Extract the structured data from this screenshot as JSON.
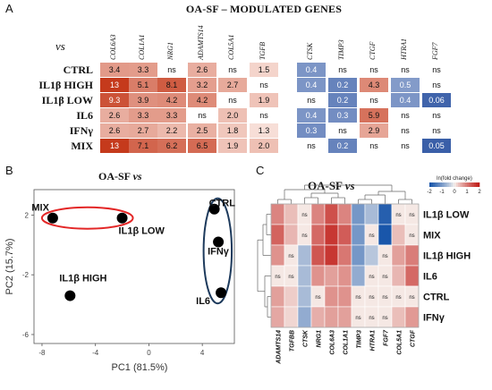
{
  "panelA": {
    "letter": "A",
    "title": "OA-SF – MODULATED GENES",
    "vs_label": "vs",
    "genes": [
      "COL6A3",
      "COL1A1",
      "NRG1",
      "ADAMTS14",
      "COL5A1",
      "TGFB",
      "CTSK",
      "TIMP3",
      "CTGF",
      "HTRA1",
      "FGF7"
    ],
    "rows": [
      {
        "label": "CTRL",
        "values": [
          "3.4",
          "3.3",
          "ns",
          "2.6",
          "ns",
          "1.5",
          "0.4",
          "ns",
          "ns",
          "ns",
          "ns"
        ]
      },
      {
        "label": "IL1β HIGH",
        "values": [
          "13",
          "5.1",
          "8.1",
          "3.2",
          "2.7",
          "ns",
          "0.4",
          "0.2",
          "4.3",
          "0.5",
          "ns"
        ]
      },
      {
        "label": "IL1β LOW",
        "values": [
          "9.3",
          "3.9",
          "4.2",
          "4.2",
          "ns",
          "1.9",
          "ns",
          "0.2",
          "ns",
          "0.4",
          "0.06"
        ]
      },
      {
        "label": "IL6",
        "values": [
          "2.6",
          "3.3",
          "3.3",
          "ns",
          "2.0",
          "ns",
          "0.4",
          "0.3",
          "5.9",
          "ns",
          "ns"
        ]
      },
      {
        "label": "IFNγ",
        "values": [
          "2.6",
          "2.7",
          "2.2",
          "2.5",
          "1.8",
          "1.3",
          "0.3",
          "ns",
          "2.9",
          "ns",
          "ns"
        ]
      },
      {
        "label": "MIX",
        "values": [
          "13",
          "7.1",
          "6.2",
          "6.5",
          "1.9",
          "2.0",
          "ns",
          "0.2",
          "ns",
          "ns",
          "0.05"
        ]
      }
    ],
    "colors": {
      "up_strong": "#c53a1c",
      "down_strong": "#3a5fa8",
      "neutral": "#fdf1ec"
    }
  },
  "panelB": {
    "letter": "B",
    "title": "OA-SF",
    "vs_label": "vs",
    "chart_data": {
      "type": "scatter",
      "xlabel": "PC1 (81.5%)",
      "ylabel": "PC2 (15.7%)",
      "xlim": [
        -8.6,
        6.4
      ],
      "ylim": [
        -6.6,
        3.7
      ],
      "xticks": [
        "-8",
        "-4",
        "0",
        "4"
      ],
      "xtick_values": [
        -8,
        -4,
        0,
        4
      ],
      "yticks": [
        "2",
        "-2",
        "-6"
      ],
      "ytick_values": [
        2,
        -2,
        -6
      ],
      "points": [
        {
          "label": "MIX",
          "x": -7.2,
          "y": 1.8
        },
        {
          "label": "IL1β LOW",
          "x": -2.0,
          "y": 1.8
        },
        {
          "label": "IL1β HIGH",
          "x": -5.9,
          "y": -3.4
        },
        {
          "label": "CTRL",
          "x": 4.9,
          "y": 2.4
        },
        {
          "label": "IFNγ",
          "x": 5.2,
          "y": 0.2
        },
        {
          "label": "IL6",
          "x": 5.4,
          "y": -3.2
        }
      ],
      "clusters": [
        {
          "color": "#e32626",
          "members": [
            "MIX",
            "IL1β LOW"
          ]
        },
        {
          "color": "#1d3a5c",
          "members": [
            "CTRL",
            "IFNγ",
            "IL6"
          ]
        }
      ]
    }
  },
  "panelC": {
    "letter": "C",
    "title": "OA-SF",
    "vs_label": "vs",
    "legend_title": "ln(fold change)",
    "legend_ticks": [
      "-2",
      "-1",
      "0",
      "1",
      "2"
    ],
    "chart_data": {
      "type": "heatmap",
      "rows": [
        "IL1β LOW",
        "MIX",
        "IL1β HIGH",
        "IL6",
        "CTRL",
        "IFNγ"
      ],
      "columns": [
        "ADAMTS14",
        "TGFBB",
        "CTSK",
        "NRG1",
        "COL6A3",
        "COL1A1",
        "TIMP3",
        "HTRA1",
        "FGF7",
        "COL5A1",
        "CTGF"
      ],
      "values": [
        [
          1.4,
          0.6,
          0.1,
          1.4,
          2.2,
          1.4,
          -1.6,
          -0.9,
          -2.8,
          0.1,
          0.1
        ],
        [
          1.9,
          0.7,
          0.1,
          1.8,
          2.6,
          2.0,
          -1.6,
          0.1,
          -3.0,
          0.6,
          0.1
        ],
        [
          1.2,
          0.1,
          -0.9,
          2.1,
          2.6,
          1.6,
          -1.6,
          -0.7,
          0.1,
          1.0,
          1.5
        ],
        [
          0.1,
          0.1,
          -0.9,
          1.2,
          1.0,
          1.2,
          -1.2,
          0.1,
          0.1,
          0.7,
          1.8
        ],
        [
          1.0,
          0.4,
          -0.9,
          0.1,
          1.2,
          1.2,
          0.1,
          0.1,
          0.1,
          0.1,
          0.1
        ],
        [
          0.9,
          0.3,
          -1.2,
          0.8,
          1.0,
          1.0,
          0.1,
          0.1,
          0.1,
          0.6,
          1.1
        ]
      ],
      "ns": [
        [
          false,
          false,
          true,
          false,
          false,
          false,
          false,
          false,
          false,
          true,
          true
        ],
        [
          false,
          false,
          true,
          false,
          false,
          false,
          false,
          true,
          false,
          false,
          true
        ],
        [
          false,
          true,
          false,
          false,
          false,
          false,
          false,
          false,
          true,
          false,
          false
        ],
        [
          true,
          true,
          false,
          false,
          false,
          false,
          false,
          true,
          true,
          false,
          false
        ],
        [
          false,
          false,
          false,
          true,
          false,
          false,
          true,
          true,
          true,
          true,
          true
        ],
        [
          false,
          false,
          false,
          false,
          false,
          false,
          true,
          true,
          true,
          false,
          false
        ]
      ]
    }
  }
}
